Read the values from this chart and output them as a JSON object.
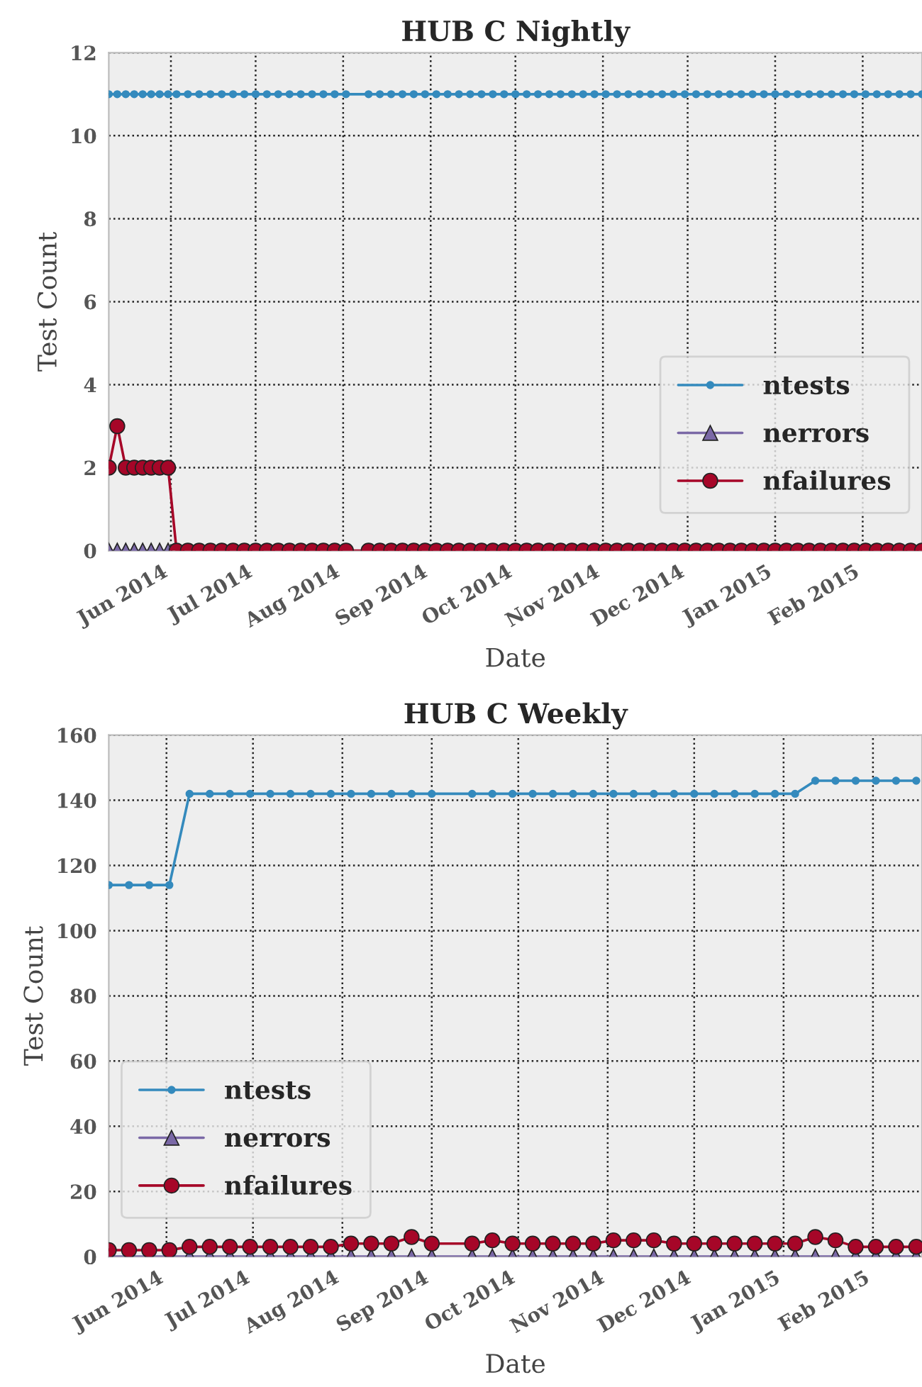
{
  "chart_data": [
    {
      "type": "line",
      "title": "HUB C Nightly",
      "xlabel": "Date",
      "ylabel": "Test Count",
      "x": [
        "2014-05-10",
        "2014-05-13",
        "2014-05-16",
        "2014-05-19",
        "2014-05-22",
        "2014-05-25",
        "2014-05-28",
        "2014-05-31",
        "2014-06-03",
        "2014-06-07",
        "2014-06-11",
        "2014-06-15",
        "2014-06-19",
        "2014-06-23",
        "2014-06-27",
        "2014-07-01",
        "2014-07-05",
        "2014-07-09",
        "2014-07-13",
        "2014-07-17",
        "2014-07-21",
        "2014-07-25",
        "2014-07-29",
        "2014-08-02",
        "2014-08-10",
        "2014-08-14",
        "2014-08-18",
        "2014-08-22",
        "2014-08-26",
        "2014-08-30",
        "2014-09-03",
        "2014-09-07",
        "2014-09-11",
        "2014-09-15",
        "2014-09-19",
        "2014-09-23",
        "2014-09-27",
        "2014-10-01",
        "2014-10-05",
        "2014-10-09",
        "2014-10-13",
        "2014-10-17",
        "2014-10-21",
        "2014-10-25",
        "2014-10-29",
        "2014-11-02",
        "2014-11-06",
        "2014-11-10",
        "2014-11-14",
        "2014-11-18",
        "2014-11-22",
        "2014-11-26",
        "2014-11-30",
        "2014-12-04",
        "2014-12-08",
        "2014-12-12",
        "2014-12-16",
        "2014-12-20",
        "2014-12-24",
        "2014-12-28",
        "2015-01-01",
        "2015-01-05",
        "2015-01-09",
        "2015-01-13",
        "2015-01-17",
        "2015-01-21",
        "2015-01-25",
        "2015-01-29",
        "2015-02-02",
        "2015-02-06",
        "2015-02-10",
        "2015-02-14",
        "2015-02-18",
        "2015-02-22"
      ],
      "series": [
        {
          "name": "ntests",
          "color": "#348abd",
          "marker": "circle",
          "values": [
            11,
            11,
            11,
            11,
            11,
            11,
            11,
            11,
            11,
            11,
            11,
            11,
            11,
            11,
            11,
            11,
            11,
            11,
            11,
            11,
            11,
            11,
            11,
            11,
            11,
            11,
            11,
            11,
            11,
            11,
            11,
            11,
            11,
            11,
            11,
            11,
            11,
            11,
            11,
            11,
            11,
            11,
            11,
            11,
            11,
            11,
            11,
            11,
            11,
            11,
            11,
            11,
            11,
            11,
            11,
            11,
            11,
            11,
            11,
            11,
            11,
            11,
            11,
            11,
            11,
            11,
            11,
            11,
            11,
            11,
            11,
            11,
            11,
            11
          ]
        },
        {
          "name": "nerrors",
          "color": "#7a68a6",
          "marker": "triangle",
          "values": [
            0,
            0,
            0,
            0,
            0,
            0,
            0,
            0,
            null,
            null,
            null,
            null,
            null,
            null,
            null,
            null,
            null,
            null,
            null,
            null,
            null,
            null,
            null,
            null,
            null,
            null,
            null,
            null,
            null,
            null,
            null,
            null,
            null,
            null,
            null,
            null,
            null,
            null,
            null,
            null,
            null,
            null,
            null,
            null,
            null,
            null,
            null,
            null,
            null,
            null,
            null,
            null,
            null,
            null,
            null,
            null,
            null,
            null,
            null,
            null,
            null,
            null,
            null,
            null,
            null,
            null,
            null,
            null,
            null,
            null,
            null,
            null,
            null,
            null
          ]
        },
        {
          "name": "nfailures",
          "color": "#a60628",
          "marker": "circle",
          "values": [
            2,
            3,
            2,
            2,
            2,
            2,
            2,
            2,
            0,
            0,
            0,
            0,
            0,
            0,
            0,
            0,
            0,
            0,
            0,
            0,
            0,
            0,
            0,
            0,
            0,
            0,
            0,
            0,
            0,
            0,
            0,
            0,
            0,
            0,
            0,
            0,
            0,
            0,
            0,
            0,
            0,
            0,
            0,
            0,
            0,
            0,
            0,
            0,
            0,
            0,
            0,
            0,
            0,
            0,
            0,
            0,
            0,
            0,
            0,
            0,
            0,
            0,
            0,
            0,
            0,
            0,
            0,
            0,
            0,
            0,
            0,
            0,
            0,
            0
          ]
        }
      ],
      "xlim": [
        "2014-05-10",
        "2015-02-22"
      ],
      "xticks": [
        {
          "value": "2014-06-01",
          "label": "Jun 2014"
        },
        {
          "value": "2014-07-01",
          "label": "Jul 2014"
        },
        {
          "value": "2014-08-01",
          "label": "Aug 2014"
        },
        {
          "value": "2014-09-01",
          "label": "Sep 2014"
        },
        {
          "value": "2014-10-01",
          "label": "Oct 2014"
        },
        {
          "value": "2014-11-01",
          "label": "Nov 2014"
        },
        {
          "value": "2014-12-01",
          "label": "Dec 2014"
        },
        {
          "value": "2015-01-01",
          "label": "Jan 2015"
        },
        {
          "value": "2015-02-01",
          "label": "Feb 2015"
        }
      ],
      "ylim": [
        0,
        12
      ],
      "yticks": [
        0,
        2,
        4,
        6,
        8,
        10,
        12
      ],
      "grid": true,
      "legend": "lower right",
      "line_style": "solid"
    },
    {
      "type": "line",
      "title": "HUB C Weekly",
      "xlabel": "Date",
      "ylabel": "Test Count",
      "x": [
        "2014-05-12",
        "2014-05-19",
        "2014-05-26",
        "2014-06-02",
        "2014-06-09",
        "2014-06-16",
        "2014-06-23",
        "2014-06-30",
        "2014-07-07",
        "2014-07-14",
        "2014-07-21",
        "2014-07-28",
        "2014-08-04",
        "2014-08-11",
        "2014-08-18",
        "2014-08-25",
        "2014-09-01",
        "2014-09-15",
        "2014-09-22",
        "2014-09-29",
        "2014-10-06",
        "2014-10-13",
        "2014-10-20",
        "2014-10-27",
        "2014-11-03",
        "2014-11-10",
        "2014-11-17",
        "2014-11-24",
        "2014-12-01",
        "2014-12-08",
        "2014-12-15",
        "2014-12-22",
        "2014-12-29",
        "2015-01-05",
        "2015-01-12",
        "2015-01-19",
        "2015-01-26",
        "2015-02-02",
        "2015-02-09",
        "2015-02-16"
      ],
      "series": [
        {
          "name": "ntests",
          "color": "#348abd",
          "marker": "circle",
          "values": [
            114,
            114,
            114,
            114,
            142,
            142,
            142,
            142,
            142,
            142,
            142,
            142,
            142,
            142,
            142,
            142,
            142,
            142,
            142,
            142,
            142,
            142,
            142,
            142,
            142,
            142,
            142,
            142,
            142,
            142,
            142,
            142,
            142,
            142,
            146,
            146,
            146,
            146,
            146,
            146
          ]
        },
        {
          "name": "nerrors",
          "color": "#7a68a6",
          "marker": "triangle",
          "values": [
            0,
            0,
            0,
            0,
            0,
            0,
            0,
            0,
            0,
            0,
            0,
            0,
            0,
            0,
            0,
            0,
            0,
            0,
            0,
            0,
            0,
            0,
            0,
            0,
            0,
            0,
            0,
            0,
            0,
            0,
            0,
            0,
            0,
            0,
            0,
            0,
            0,
            0,
            0,
            0
          ]
        },
        {
          "name": "nfailures",
          "color": "#a60628",
          "marker": "circle",
          "values": [
            2,
            2,
            2,
            2,
            3,
            3,
            3,
            3,
            3,
            3,
            3,
            3,
            4,
            4,
            4,
            6,
            4,
            4,
            5,
            4,
            4,
            4,
            4,
            4,
            5,
            5,
            5,
            4,
            4,
            4,
            4,
            4,
            4,
            4,
            6,
            5,
            3,
            3,
            3,
            3
          ]
        }
      ],
      "xlim": [
        "2014-05-12",
        "2015-02-18"
      ],
      "xticks": [
        {
          "value": "2014-06-01",
          "label": "Jun 2014"
        },
        {
          "value": "2014-07-01",
          "label": "Jul 2014"
        },
        {
          "value": "2014-08-01",
          "label": "Aug 2014"
        },
        {
          "value": "2014-09-01",
          "label": "Sep 2014"
        },
        {
          "value": "2014-10-01",
          "label": "Oct 2014"
        },
        {
          "value": "2014-11-01",
          "label": "Nov 2014"
        },
        {
          "value": "2014-12-01",
          "label": "Dec 2014"
        },
        {
          "value": "2015-01-01",
          "label": "Jan 2015"
        },
        {
          "value": "2015-02-01",
          "label": "Feb 2015"
        }
      ],
      "ylim": [
        0,
        160
      ],
      "yticks": [
        0,
        20,
        40,
        60,
        80,
        100,
        120,
        140,
        160
      ],
      "grid": true,
      "legend": "lower left",
      "line_style": "solid"
    }
  ]
}
